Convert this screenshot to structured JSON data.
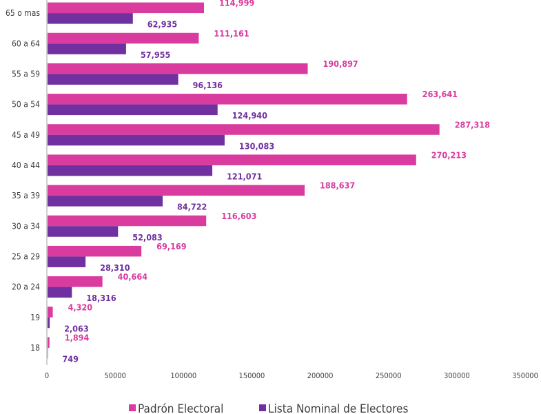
{
  "chart_data": {
    "type": "bar",
    "orientation": "horizontal",
    "categories": [
      "65 o mas",
      "60 a 64",
      "55 a 59",
      "50 a 54",
      "45 a 49",
      "40 a 44",
      "35 a 39",
      "30 a 34",
      "25 a 29",
      "20 a 24",
      "19",
      "18"
    ],
    "series": [
      {
        "name": "Padrón Electoral",
        "color": "#D93B9E",
        "values": [
          114999,
          111161,
          190897,
          263641,
          287318,
          270213,
          188637,
          116603,
          69169,
          40664,
          4320,
          1894
        ],
        "labels": [
          "114,999",
          "111,161",
          "190,897",
          "263,641",
          "287,318",
          "270,213",
          "188,637",
          "116,603",
          "69,169",
          "40,664",
          "4,320",
          "1,894"
        ]
      },
      {
        "name": "Lista Nominal de Electores",
        "color": "#7030A0",
        "values": [
          62935,
          57955,
          96136,
          124940,
          130083,
          121071,
          84722,
          52083,
          28310,
          18316,
          2063,
          749
        ],
        "labels": [
          "62,935",
          "57,955",
          "96,136",
          "124,940",
          "130,083",
          "121,071",
          "84,722",
          "52,083",
          "28,310",
          "18,316",
          "2,063",
          "749"
        ]
      }
    ],
    "xlim": [
      0,
      350000
    ],
    "xticks": [
      "0",
      "50000",
      "100000",
      "150000",
      "200000",
      "250000",
      "300000",
      "350000"
    ],
    "grid": false,
    "legend_position": "bottom"
  }
}
